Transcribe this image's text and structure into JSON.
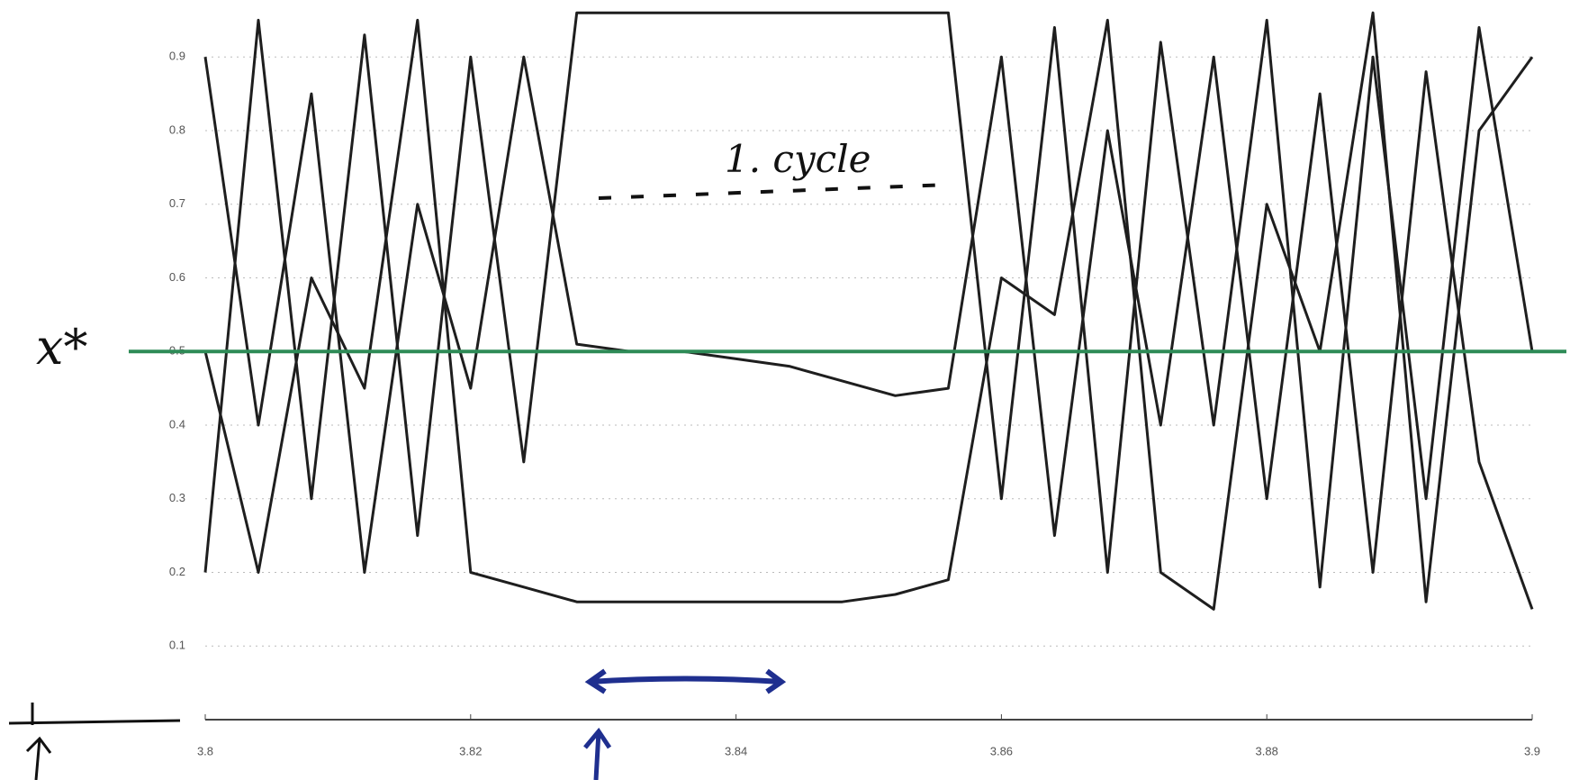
{
  "chart_data": {
    "type": "line",
    "x": [
      3.8,
      3.804,
      3.808,
      3.812,
      3.816,
      3.82,
      3.824,
      3.828,
      3.832,
      3.836,
      3.84,
      3.844,
      3.848,
      3.852,
      3.856,
      3.86,
      3.864,
      3.868,
      3.872,
      3.876,
      3.88,
      3.884,
      3.888,
      3.892,
      3.896,
      3.9
    ],
    "series": [
      {
        "color": "#1e1e1e",
        "values": [
          0.2,
          0.95,
          0.3,
          0.93,
          0.25,
          0.9,
          0.35,
          0.96,
          0.96,
          0.96,
          0.96,
          0.96,
          0.96,
          0.96,
          0.96,
          0.3,
          0.94,
          0.2,
          0.92,
          0.4,
          0.95,
          0.18,
          0.9,
          0.3,
          0.94,
          0.5
        ]
      },
      {
        "color": "#1e1e1e",
        "values": [
          0.9,
          0.4,
          0.85,
          0.2,
          0.7,
          0.45,
          0.9,
          0.51,
          0.5,
          0.5,
          0.49,
          0.48,
          0.46,
          0.44,
          0.45,
          0.9,
          0.25,
          0.8,
          0.4,
          0.9,
          0.3,
          0.85,
          0.2,
          0.88,
          0.35,
          0.15
        ]
      },
      {
        "color": "#1e1e1e",
        "values": [
          0.5,
          0.2,
          0.6,
          0.45,
          0.95,
          0.2,
          0.18,
          0.16,
          0.16,
          0.16,
          0.16,
          0.16,
          0.16,
          0.17,
          0.19,
          0.6,
          0.55,
          0.95,
          0.2,
          0.15,
          0.7,
          0.5,
          0.96,
          0.16,
          0.8,
          0.9
        ]
      }
    ],
    "xlim": [
      3.8,
      3.9
    ],
    "xticks": [
      3.8,
      3.82,
      3.84,
      3.86,
      3.88,
      3.9
    ],
    "ylim": [
      0,
      0.97
    ],
    "yticks": [
      0.9,
      0.8,
      0.7,
      0.6,
      0.5,
      0.4,
      0.3,
      0.2,
      0.1
    ],
    "grid": true,
    "reference_line": {
      "value": 0.5,
      "color": "#2e8b57"
    },
    "y_label": "x*",
    "annotation": "1. cycle"
  }
}
